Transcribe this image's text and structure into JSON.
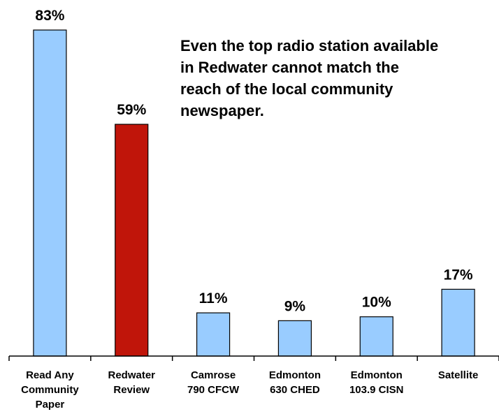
{
  "chart_data": {
    "type": "bar",
    "categories": [
      [
        "Read Any",
        "Community",
        "Paper"
      ],
      [
        "Redwater",
        "Review"
      ],
      [
        "Camrose",
        "790 CFCW"
      ],
      [
        "Edmonton",
        "630 CHED"
      ],
      [
        "Edmonton",
        "103.9 CISN"
      ],
      [
        "Satellite"
      ]
    ],
    "values": [
      83,
      59,
      11,
      9,
      10,
      17
    ],
    "data_labels": [
      "83%",
      "59%",
      "11%",
      "9%",
      "10%",
      "17%"
    ],
    "bar_colors": [
      "#99ccff",
      "#c0150a",
      "#99ccff",
      "#99ccff",
      "#99ccff",
      "#99ccff"
    ],
    "annotation": "Even the top radio station available\nin Redwater cannot match the\nreach of the local community\nnewspaper.",
    "ylim": [
      0,
      83
    ],
    "grid": false,
    "legend": "none"
  }
}
